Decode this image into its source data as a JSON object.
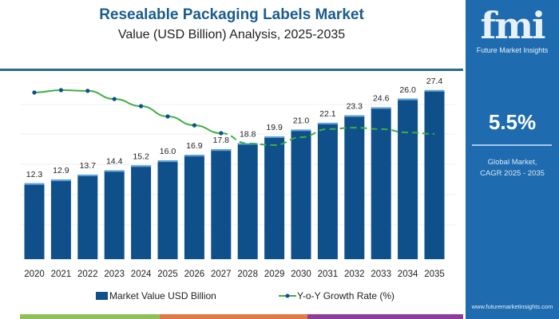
{
  "header": {
    "title": "Resealable Packaging Labels Market",
    "subtitle": "Value (USD Billion) Analysis, 2025-2035"
  },
  "side_panel": {
    "logo_text": "fmi",
    "logo_subtitle": "Future Market Insights",
    "cagr_value": "5.5%",
    "cagr_label_line1": "Global Market,",
    "cagr_label_line2": "CAGR 2025 - 2035",
    "url": "www.futuremarketinsights.com",
    "color": "#1e6bb0"
  },
  "chart_data": {
    "type": "bar",
    "categories": [
      "2020",
      "2021",
      "2022",
      "2023",
      "2024",
      "2025",
      "2026",
      "2027",
      "2028",
      "2029",
      "2030",
      "2031",
      "2032",
      "2033",
      "2034",
      "2035"
    ],
    "series": [
      {
        "name": "Market Value USD Billion",
        "type": "bar",
        "color": "#0f4f8a",
        "values": [
          12.3,
          12.9,
          13.7,
          14.4,
          15.2,
          16.0,
          16.9,
          17.8,
          18.8,
          19.9,
          21.0,
          22.1,
          23.3,
          24.6,
          26.0,
          27.4
        ]
      },
      {
        "name": "Y-o-Y Growth Rate (%)",
        "type": "line",
        "color": "#3cb043",
        "marker_color": "#0f4f8a",
        "values": [
          6.0,
          6.1,
          6.07,
          5.73,
          5.43,
          5.0,
          4.63,
          4.3,
          3.87,
          3.8,
          4.13,
          4.47,
          4.53,
          4.47,
          4.33,
          4.27
        ],
        "dashed_from": "2028"
      }
    ],
    "data_labels": [
      "12.3",
      "12.9",
      "13.7",
      "14.4",
      "15.2",
      "16.0",
      "16.9",
      "17.8",
      "18.8",
      "19.9",
      "21.0",
      "22.1",
      "23.3",
      "24.6",
      "26.0",
      "27.4"
    ],
    "ylim": [
      0,
      30
    ],
    "grid": true,
    "legend": "bottom"
  },
  "footer_strip_colors": [
    "#8fbf5a",
    "#e07a4a",
    "#8a3f9a"
  ]
}
